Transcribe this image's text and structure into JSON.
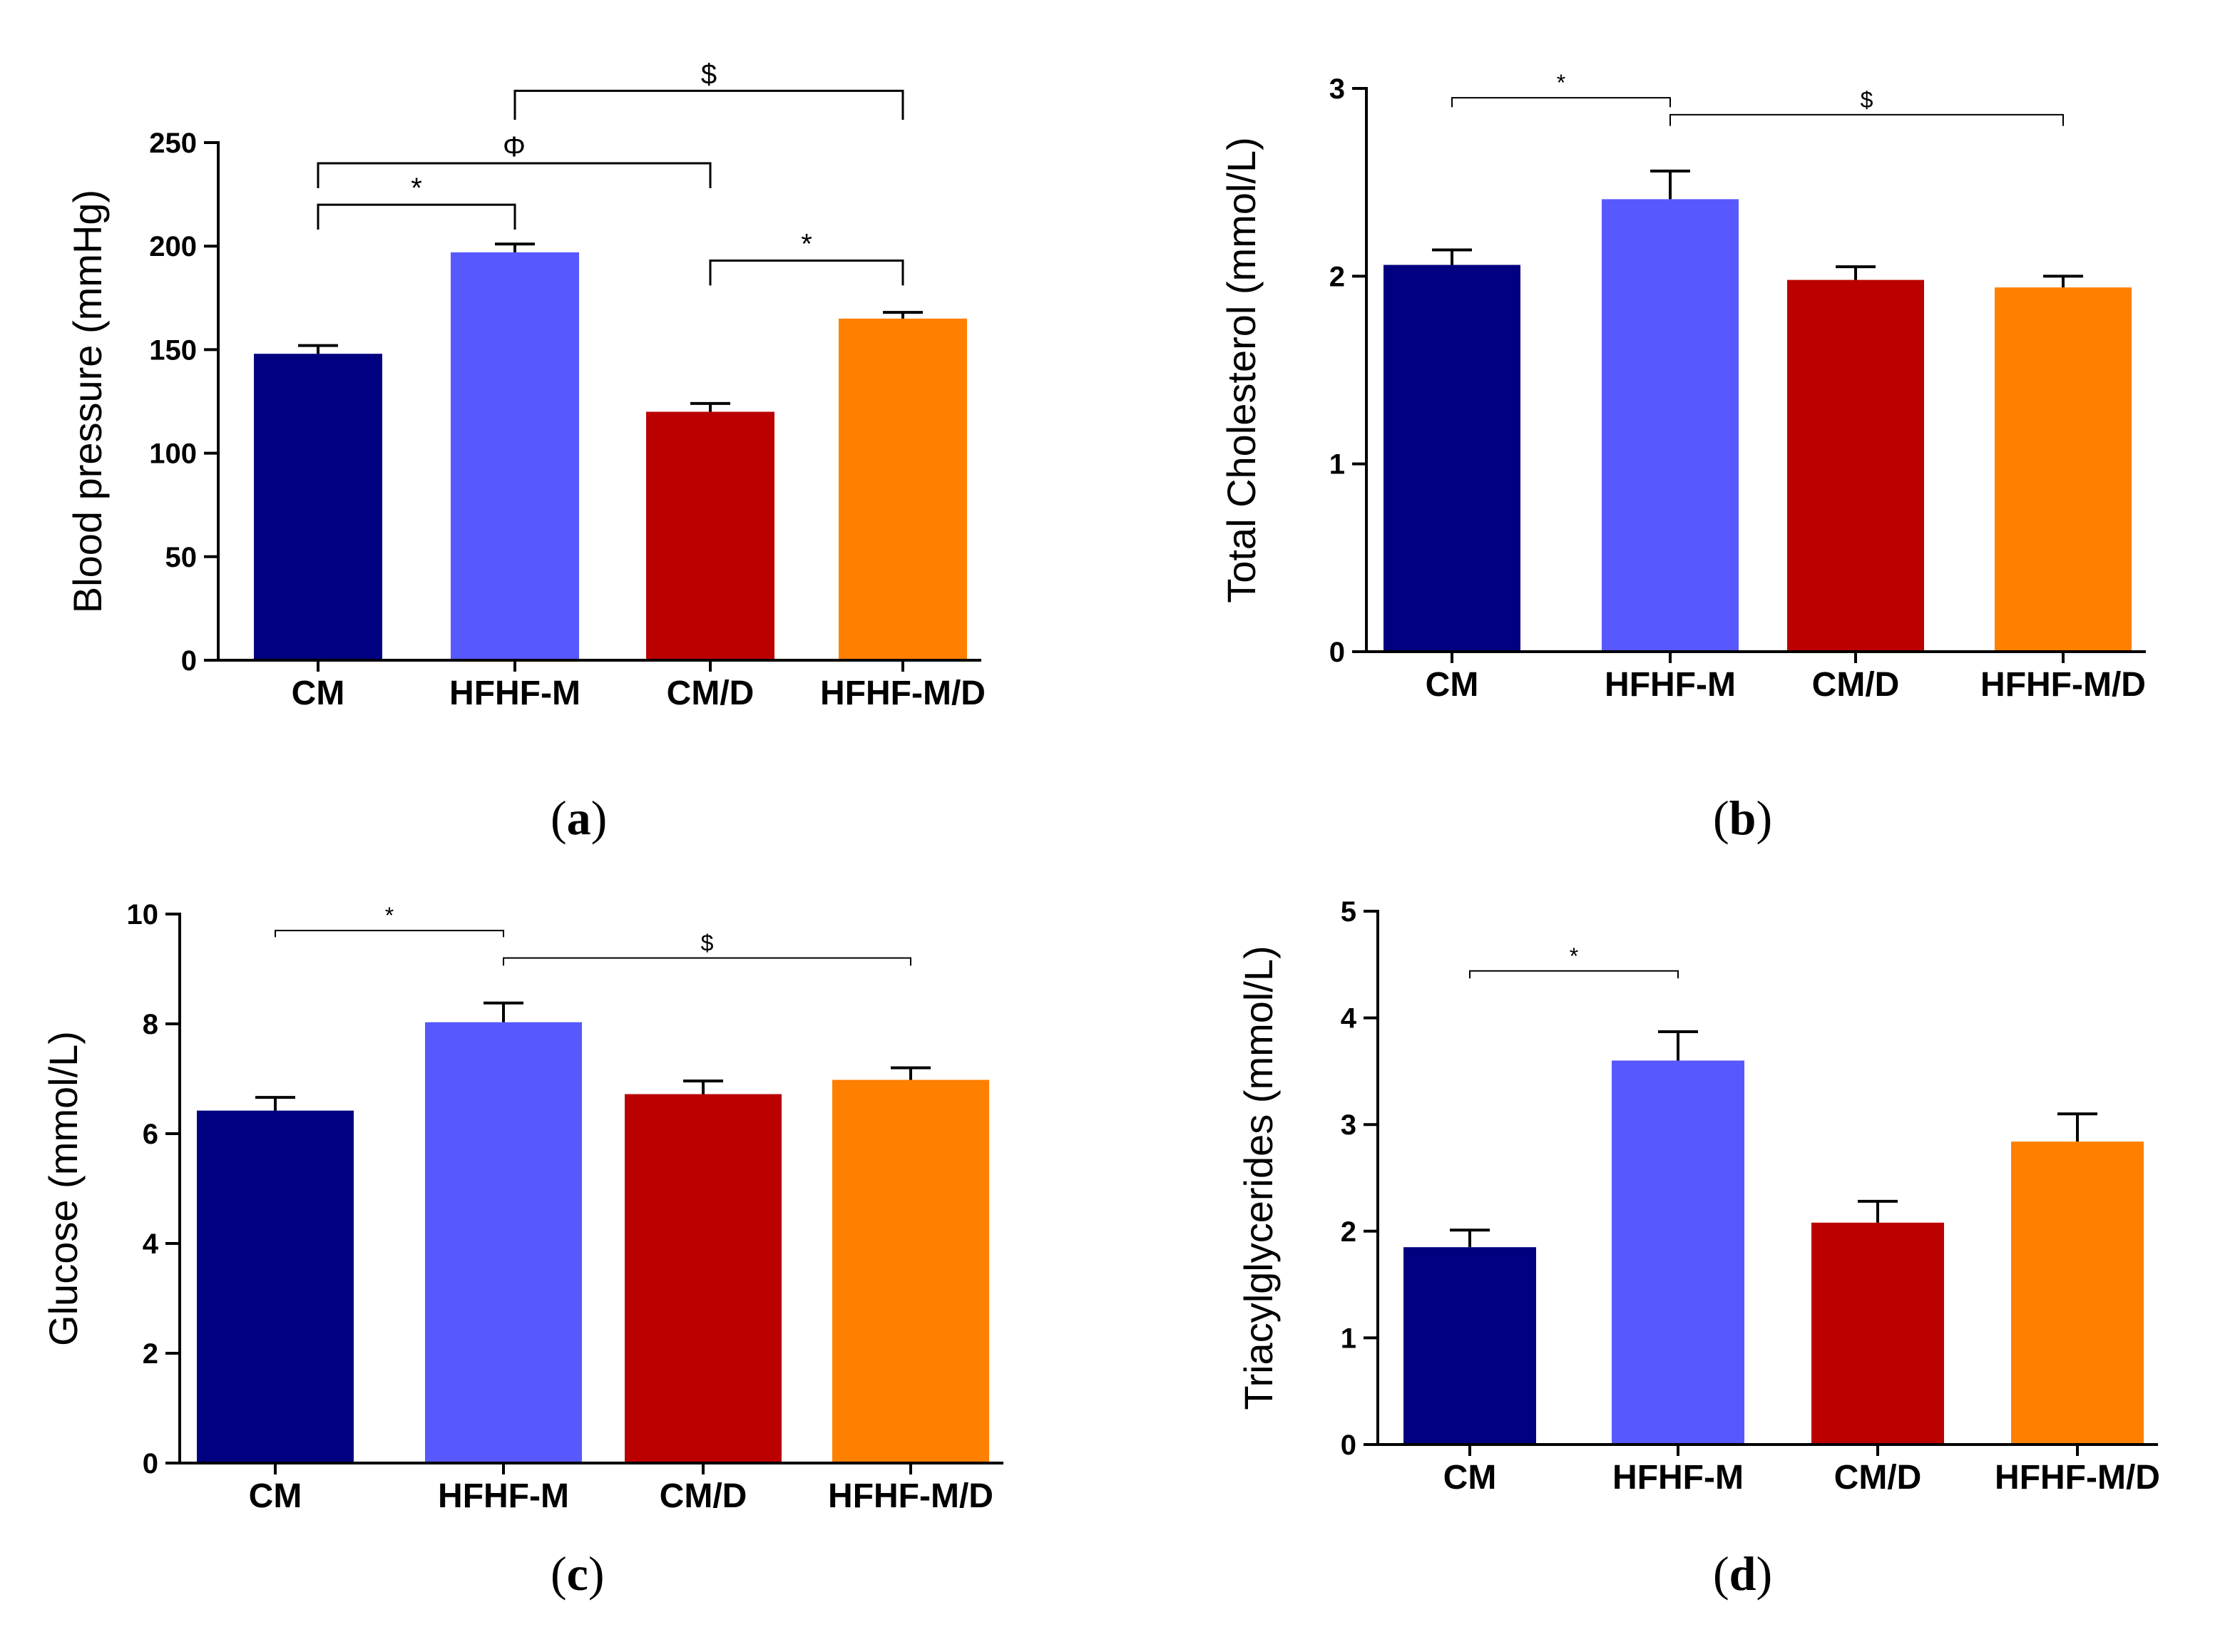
{
  "chart_data": [
    {
      "type": "bar",
      "panel": "(a)",
      "panel_letter": "a",
      "ylabel": "Blood pressure (mmHg)",
      "categories": [
        "CM",
        "HFHF-M",
        "CM/D",
        "HFHF-M/D"
      ],
      "values": [
        148,
        197,
        120,
        165
      ],
      "errors": [
        4,
        4,
        4,
        3
      ],
      "colors": [
        "#000080",
        "#5858FF",
        "#BB0000",
        "#FF8000"
      ],
      "ylim": [
        0,
        250
      ],
      "yticks": [
        0,
        50,
        100,
        150,
        200,
        250
      ],
      "significance": [
        {
          "from": 0,
          "to": 1,
          "label": "*",
          "y": 220,
          "drop": 12
        },
        {
          "from": 0,
          "to": 2,
          "label": "Φ",
          "y": 240,
          "drop": 12
        },
        {
          "from": 2,
          "to": 3,
          "label": "*",
          "y": 193,
          "drop": 12
        },
        {
          "from": 1,
          "to": 3,
          "label": "$",
          "y": 275,
          "drop": 14
        }
      ]
    },
    {
      "type": "bar",
      "panel": "(b)",
      "panel_letter": "b",
      "ylabel": "Total Cholesterol (mmol/L)",
      "categories": [
        "CM",
        "HFHF-M",
        "CM/D",
        "HFHF-M/D"
      ],
      "values": [
        2.06,
        2.41,
        1.98,
        1.94
      ],
      "errors": [
        0.08,
        0.15,
        0.07,
        0.06
      ],
      "colors": [
        "#000080",
        "#5858FF",
        "#BB0000",
        "#FF8000"
      ],
      "ylim": [
        0,
        3
      ],
      "yticks": [
        0,
        1,
        2,
        3
      ],
      "significance": [
        {
          "from": 0,
          "to": 1,
          "label": "*",
          "y": 2.95,
          "drop": 0.05
        },
        {
          "from": 1,
          "to": 3,
          "label": "$",
          "y": 2.86,
          "drop": 0.06
        }
      ]
    },
    {
      "type": "bar",
      "panel": "(c)",
      "panel_letter": "c",
      "ylabel": "Glucose (mmol/L)",
      "categories": [
        "CM",
        "HFHF-M",
        "CM/D",
        "HFHF-M/D"
      ],
      "values": [
        6.42,
        8.03,
        6.72,
        6.98
      ],
      "errors": [
        0.24,
        0.35,
        0.24,
        0.22
      ],
      "colors": [
        "#000080",
        "#5858FF",
        "#BB0000",
        "#FF8000"
      ],
      "ylim": [
        0,
        10
      ],
      "yticks": [
        0,
        2,
        4,
        6,
        8,
        10
      ],
      "significance": [
        {
          "from": 0,
          "to": 1,
          "label": "*",
          "y": 9.7,
          "drop": 0.12
        },
        {
          "from": 1,
          "to": 3,
          "label": "$",
          "y": 9.2,
          "drop": 0.14
        }
      ]
    },
    {
      "type": "bar",
      "panel": "(d)",
      "panel_letter": "d",
      "ylabel": "Triacylglycerides (mmol/L)",
      "categories": [
        "CM",
        "HFHF-M",
        "CM/D",
        "HFHF-M/D"
      ],
      "values": [
        1.85,
        3.6,
        2.08,
        2.84
      ],
      "errors": [
        0.16,
        0.27,
        0.2,
        0.26
      ],
      "colors": [
        "#000080",
        "#5858FF",
        "#BB0000",
        "#FF8000"
      ],
      "ylim": [
        0,
        5
      ],
      "yticks": [
        0,
        1,
        2,
        3,
        4,
        5
      ],
      "significance": [
        {
          "from": 0,
          "to": 1,
          "label": "*",
          "y": 4.44,
          "drop": 0.07
        }
      ]
    }
  ]
}
